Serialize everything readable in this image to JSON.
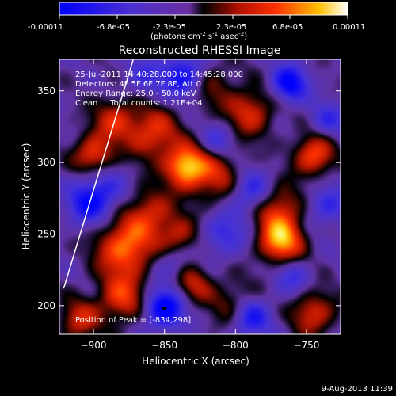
{
  "colorbar": {
    "ticks": [
      "-0.00011",
      "-6.8e-05",
      "-2.3e-05",
      "2.3e-05",
      "6.8e-05",
      "0.00011"
    ],
    "units_main": "(photons cm",
    "units_exp1": "-2",
    "units_mid": " s",
    "units_exp2": "-1",
    "units_mid2": " asec",
    "units_exp3": "-2",
    "units_end": ")"
  },
  "chart_data": {
    "type": "heatmap",
    "title": "Reconstructed RHESSI Image",
    "xlabel": "Heliocentric X (arcsec)",
    "ylabel": "Heliocentric Y (arcsec)",
    "xlim": [
      -924,
      -726
    ],
    "ylim": [
      180,
      372
    ],
    "xticks": [
      -900,
      -850,
      -800,
      -750
    ],
    "yticks": [
      200,
      250,
      300,
      350
    ],
    "xtick_labels": [
      "−900",
      "−850",
      "−800",
      "−750"
    ],
    "ytick_labels": [
      "200",
      "250",
      "300",
      "350"
    ],
    "colorbar_range": [
      -0.00011,
      0.00011
    ],
    "limb_x": [
      -921,
      -872
    ],
    "limb_y": [
      212,
      372
    ],
    "sources": [
      {
        "x": -835,
        "y": 297,
        "a": 1.0,
        "s": 10
      },
      {
        "x": -812,
        "y": 290,
        "a": 0.55,
        "s": 14
      },
      {
        "x": -768,
        "y": 245,
        "a": 0.95,
        "s": 11
      },
      {
        "x": -770,
        "y": 268,
        "a": 0.6,
        "s": 12
      },
      {
        "x": -745,
        "y": 305,
        "a": 0.75,
        "s": 10
      },
      {
        "x": -745,
        "y": 195,
        "a": 0.6,
        "s": 11
      },
      {
        "x": -878,
        "y": 240,
        "a": 0.85,
        "s": 14
      },
      {
        "x": -880,
        "y": 205,
        "a": 0.65,
        "s": 12
      },
      {
        "x": -858,
        "y": 320,
        "a": 0.65,
        "s": 13
      },
      {
        "x": -885,
        "y": 330,
        "a": 0.55,
        "s": 11
      },
      {
        "x": -900,
        "y": 305,
        "a": 0.7,
        "s": 10
      },
      {
        "x": -860,
        "y": 265,
        "a": 0.55,
        "s": 12
      },
      {
        "x": -840,
        "y": 248,
        "a": 0.5,
        "s": 10
      },
      {
        "x": -790,
        "y": 335,
        "a": 0.6,
        "s": 12
      },
      {
        "x": -800,
        "y": 200,
        "a": 0.45,
        "s": 12
      },
      {
        "x": -830,
        "y": 215,
        "a": 0.5,
        "s": 10
      },
      {
        "x": -910,
        "y": 190,
        "a": 0.55,
        "s": 10
      },
      {
        "x": -820,
        "y": 355,
        "a": 0.45,
        "s": 12
      },
      {
        "x": -835,
        "y": 360,
        "a": -0.8,
        "s": 11
      },
      {
        "x": -790,
        "y": 280,
        "a": -0.6,
        "s": 11
      },
      {
        "x": -850,
        "y": 198,
        "a": -0.9,
        "s": 10
      },
      {
        "x": -762,
        "y": 355,
        "a": -0.8,
        "s": 9
      },
      {
        "x": -790,
        "y": 192,
        "a": -0.75,
        "s": 10
      },
      {
        "x": -895,
        "y": 280,
        "a": -0.5,
        "s": 12
      },
      {
        "x": -905,
        "y": 270,
        "a": -0.45,
        "s": 10
      },
      {
        "x": -808,
        "y": 250,
        "a": -0.45,
        "s": 11
      },
      {
        "x": -735,
        "y": 270,
        "a": -0.45,
        "s": 10
      },
      {
        "x": -812,
        "y": 315,
        "a": -0.4,
        "s": 9
      },
      {
        "x": -760,
        "y": 220,
        "a": -0.4,
        "s": 9
      },
      {
        "x": -865,
        "y": 360,
        "a": -0.35,
        "s": 10
      },
      {
        "x": -735,
        "y": 330,
        "a": -0.4,
        "s": 9
      },
      {
        "x": -845,
        "y": 230,
        "a": -0.35,
        "s": 9
      }
    ]
  },
  "annotations": {
    "time_range": "25-Jul-2011 14:40:28.000 to 14:45:28.000",
    "detectors": "Detectors: 4F 5F 6F 7F 8F, Att 0",
    "energy": "Energy Range: 25.0 - 50.0 keV",
    "clean": "Clean     Total counts: 1.21E+04",
    "peak": "Position of Peak = [-834,298]"
  },
  "footer": {
    "date": "9-Aug-2013 11:39"
  }
}
